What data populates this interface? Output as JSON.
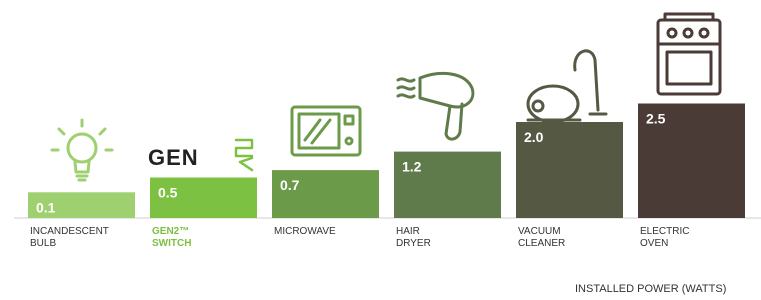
{
  "chart_data": {
    "type": "bar",
    "categories": [
      [
        "INCANDESCENT",
        "BULB"
      ],
      [
        "GEN2™",
        "SWITCH"
      ],
      [
        "MICROWAVE"
      ],
      [
        "HAIR",
        "DRYER"
      ],
      [
        "VACUUM",
        "CLEANER"
      ],
      [
        "ELECTRIC",
        "OVEN"
      ]
    ],
    "values": [
      0.1,
      0.5,
      0.7,
      1.2,
      2.0,
      2.5
    ],
    "value_labels": [
      "0.1",
      "0.5",
      "0.7",
      "1.2",
      "2.0",
      "2.5"
    ],
    "colors": [
      "#9fd070",
      "#7cc142",
      "#6b9a49",
      "#5f7a4b",
      "#555944",
      "#4a3b37"
    ],
    "label_colors": [
      "#333333",
      "#7cc142",
      "#333333",
      "#333333",
      "#333333",
      "#333333"
    ],
    "logo": "GEN",
    "x_label": "INSTALLED POWER (WATTS)"
  }
}
